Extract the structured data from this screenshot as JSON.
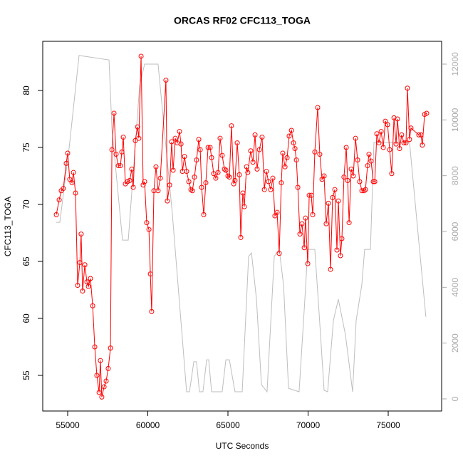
{
  "chart_data": {
    "type": "line",
    "title": "ORCAS RF02 CFC113_TOGA",
    "xlabel": "UTC Seconds",
    "ylabel": "CFC113_TOGA",
    "xlim": [
      53444,
      78333
    ],
    "xticks": [
      55000,
      60000,
      65000,
      70000,
      75000
    ],
    "ylim": [
      51.875,
      84.31
    ],
    "yticks": [
      55,
      60,
      65,
      70,
      75,
      80
    ],
    "y2lim": [
      -434,
      12817
    ],
    "y2ticks": [
      0,
      2000,
      4000,
      6000,
      8000,
      10000,
      12000
    ],
    "series": [
      {
        "color": "#ff0000",
        "marker": "circle",
        "x": [
          54290,
          54470,
          54600,
          54730,
          54910,
          55000,
          55130,
          55270,
          55360,
          55490,
          55620,
          55760,
          55840,
          55930,
          56070,
          56200,
          56290,
          56420,
          56560,
          56690,
          56820,
          56960,
          57040,
          57130,
          57270,
          57400,
          57530,
          57670,
          57760,
          57890,
          58020,
          58160,
          58290,
          58380,
          58470,
          58600,
          58730,
          58870,
          59000,
          59090,
          59220,
          59360,
          59440,
          59580,
          59710,
          59800,
          59930,
          60070,
          60160,
          60240,
          60380,
          60510,
          60640,
          60780,
          61130,
          61220,
          61360,
          61490,
          61580,
          61710,
          61840,
          61980,
          62070,
          62160,
          62290,
          62420,
          62560,
          62690,
          62780,
          62910,
          63040,
          63180,
          63270,
          63360,
          63490,
          63620,
          63760,
          63890,
          63980,
          64110,
          64240,
          64380,
          64510,
          64640,
          64780,
          64870,
          65000,
          65090,
          65220,
          65360,
          65440,
          65580,
          65710,
          65800,
          65930,
          66020,
          66160,
          66240,
          66420,
          66560,
          66690,
          66820,
          66960,
          67130,
          67270,
          67400,
          67530,
          67670,
          67800,
          67930,
          68070,
          68200,
          68330,
          68420,
          68560,
          68690,
          68820,
          68960,
          69090,
          69180,
          69270,
          69360,
          69490,
          69620,
          69760,
          69840,
          69980,
          70070,
          70200,
          70290,
          70420,
          70600,
          70730,
          70870,
          71000,
          71130,
          71270,
          71400,
          71530,
          71670,
          71800,
          71890,
          72020,
          72110,
          72240,
          72380,
          72470,
          72560,
          72690,
          72820,
          72960,
          73090,
          73220,
          73360,
          73490,
          73580,
          73710,
          73800,
          73930,
          74070,
          74160,
          74290,
          74420,
          74560,
          74690,
          74820,
          74960,
          75090,
          75220,
          75360,
          75490,
          75580,
          75710,
          75840,
          75980,
          76110,
          76200,
          76330,
          76420,
          76910,
          77040,
          77130,
          77270,
          77400
        ],
        "values": [
          69.1,
          70.4,
          71.2,
          71.4,
          73.6,
          74.5,
          72.2,
          71.9,
          72.8,
          71.0,
          62.9,
          64.9,
          67.4,
          62.4,
          64.7,
          63.2,
          62.8,
          63.5,
          61.1,
          57.5,
          55.0,
          53.5,
          56.3,
          53.1,
          54.0,
          54.5,
          55.6,
          57.4,
          74.8,
          78.0,
          74.4,
          73.4,
          73.4,
          74.6,
          75.9,
          71.8,
          72.0,
          72.1,
          73.1,
          71.5,
          75.6,
          76.8,
          75.8,
          83.0,
          71.7,
          72.0,
          68.4,
          67.8,
          63.9,
          60.6,
          71.2,
          73.3,
          71.2,
          72.3,
          80.9,
          70.3,
          71.7,
          75.5,
          73.0,
          75.8,
          75.4,
          76.4,
          75.3,
          72.9,
          74.2,
          72.9,
          72.0,
          71.3,
          71.2,
          72.4,
          73.9,
          75.7,
          74.8,
          71.5,
          69.1,
          71.9,
          75.0,
          75.0,
          74.1,
          72.7,
          72.3,
          72.8,
          75.8,
          74.3,
          73.1,
          73.0,
          72.5,
          72.4,
          76.9,
          71.8,
          72.1,
          75.4,
          72.6,
          67.1,
          71.0,
          69.8,
          73.3,
          72.8,
          74.7,
          73.7,
          76.1,
          73.1,
          74.8,
          75.9,
          71.3,
          72.9,
          72.0,
          71.3,
          72.3,
          69.0,
          69.3,
          65.7,
          71.9,
          74.5,
          73.3,
          74.1,
          76.0,
          76.5,
          75.4,
          74.9,
          73.9,
          71.5,
          67.4,
          68.3,
          66.2,
          68.8,
          64.8,
          70.8,
          70.8,
          69.1,
          74.6,
          78.5,
          74.4,
          72.2,
          72.5,
          68.3,
          70.1,
          64.3,
          70.6,
          71.3,
          66.0,
          70.3,
          65.5,
          67.0,
          72.4,
          75.0,
          72.1,
          68.4,
          73.1,
          72.5,
          75.8,
          73.9,
          72.0,
          71.2,
          71.2,
          71.3,
          73.4,
          74.4,
          73.8,
          72.0,
          72.0,
          76.2,
          75.4,
          76.4,
          75.0,
          77.3,
          77.0,
          74.8,
          72.7,
          77.6,
          75.3,
          77.5,
          74.9,
          76.1,
          75.4,
          75.4,
          80.2,
          75.7,
          76.7,
          76.1,
          76.1,
          75.2,
          77.9,
          78.0
        ]
      },
      {
        "color": "#bebebe",
        "axis": "y2",
        "x": [
          54290,
          54510,
          55090,
          55710,
          57580,
          57760,
          58420,
          58780,
          59490,
          59800,
          60640,
          61530,
          62420,
          62600,
          62870,
          63040,
          63220,
          63440,
          63670,
          63800,
          63980,
          64640,
          64870,
          65090,
          65440,
          65890,
          66290,
          66470,
          66780,
          67090,
          67440,
          67890,
          68200,
          68470,
          68780,
          69440,
          69800,
          69980,
          70420,
          70690,
          71000,
          71220,
          71580,
          71890,
          72330,
          72780,
          73000,
          73350,
          73530,
          73890,
          74110,
          76330,
          77350
        ],
        "values": [
          6330,
          6330,
          8990,
          12310,
          12150,
          9700,
          5690,
          5690,
          11230,
          12000,
          12000,
          6640,
          255,
          255,
          1330,
          1330,
          255,
          255,
          1400,
          1400,
          255,
          255,
          1400,
          1400,
          255,
          255,
          5110,
          5230,
          3570,
          510,
          255,
          5110,
          5360,
          4080,
          380,
          255,
          3570,
          5360,
          5360,
          3060,
          310,
          255,
          2810,
          3570,
          2300,
          255,
          2810,
          4080,
          5360,
          5360,
          9190,
          9190,
          2940
        ]
      }
    ]
  }
}
